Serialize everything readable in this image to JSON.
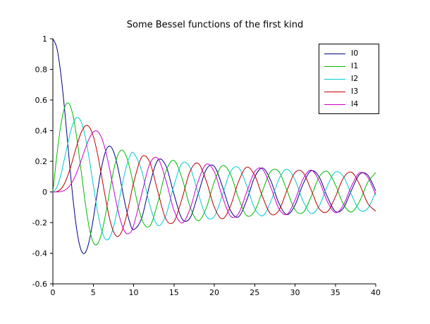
{
  "window": {
    "background": "#ffffff"
  },
  "chart_data": {
    "type": "line",
    "title": "Some Bessel functions of the first kind",
    "xlabel": "",
    "ylabel": "",
    "xlim": [
      0,
      40
    ],
    "ylim": [
      -0.6,
      1
    ],
    "grid": false,
    "legend_position": "top-right",
    "x_tick_labels": [
      "0",
      "5",
      "10",
      "15",
      "20",
      "25",
      "30",
      "35",
      "40"
    ],
    "x_ticks": [
      0,
      5,
      10,
      15,
      20,
      25,
      30,
      35,
      40
    ],
    "y_tick_labels": [
      "-0.6",
      "-0.4",
      "-0.2",
      "0",
      "0.2",
      "0.4",
      "0.6",
      "0.8",
      "1"
    ],
    "y_ticks": [
      -0.6,
      -0.4,
      -0.2,
      0,
      0.2,
      0.4,
      0.6,
      0.8,
      1
    ],
    "x": [
      0,
      0.5,
      1,
      1.5,
      2,
      2.5,
      3,
      3.5,
      4,
      4.5,
      5,
      5.5,
      6,
      6.5,
      7,
      7.5,
      8,
      8.5,
      9,
      9.5,
      10,
      11,
      12,
      13,
      14,
      15,
      16,
      17,
      18,
      19,
      20,
      21,
      22,
      23,
      24,
      25,
      26,
      27,
      28,
      29,
      30,
      31,
      32,
      33,
      34,
      35,
      36,
      37,
      38,
      39,
      40
    ],
    "series": [
      {
        "name": "I0",
        "color": "#000080",
        "values": [
          1.0,
          0.9385,
          0.7652,
          0.5118,
          0.2239,
          -0.0484,
          -0.2601,
          -0.3801,
          -0.3971,
          -0.3205,
          -0.1776,
          -0.0068,
          0.1506,
          0.2601,
          0.3001,
          0.2663,
          0.1717,
          0.0419,
          -0.0903,
          -0.1939,
          -0.2459,
          -0.1712,
          0.0477,
          0.2069,
          0.1711,
          -0.0142,
          -0.1749,
          -0.1699,
          -0.0134,
          0.1466,
          0.167,
          0.0366,
          -0.1207,
          -0.1624,
          -0.0562,
          0.0963,
          0.156,
          0.0727,
          -0.0732,
          -0.1478,
          -0.0864,
          0.0516,
          0.1382,
          0.097,
          -0.0309,
          -0.127,
          -0.1053,
          0.0113,
          0.1145,
          0.1112,
          0.007
        ]
      },
      {
        "name": "I1",
        "color": "#00BB00",
        "values": [
          0,
          0.2423,
          0.4401,
          0.5579,
          0.5767,
          0.4971,
          0.3391,
          0.1374,
          -0.066,
          -0.2311,
          -0.3276,
          -0.3414,
          -0.2767,
          -0.1538,
          -0.0047,
          0.1352,
          0.2346,
          0.2731,
          0.2453,
          0.1613,
          0.0435,
          -0.1768,
          -0.2234,
          -0.0703,
          0.1334,
          0.2051,
          0.0904,
          -0.0977,
          -0.188,
          -0.1057,
          0.0668,
          0.1717,
          0.1172,
          -0.0395,
          -0.154,
          -0.1254,
          0.0105,
          0.1346,
          0.1325,
          0.0108,
          -0.1166,
          -0.1343,
          -0.0299,
          0.0983,
          0.1336,
          0.0468,
          -0.0801,
          -0.1308,
          -0.0613,
          0.0619,
          0.1259
        ]
      },
      {
        "name": "I2",
        "color": "#00CCCC",
        "values": [
          0,
          0.0306,
          0.1149,
          0.2321,
          0.3528,
          0.4461,
          0.4861,
          0.4586,
          0.3641,
          0.2178,
          0.0466,
          -0.1174,
          -0.2429,
          -0.3074,
          -0.3014,
          -0.2302,
          -0.113,
          0.0223,
          0.1448,
          0.2279,
          0.2546,
          0.139,
          -0.0849,
          -0.2177,
          -0.152,
          0.0416,
          0.1862,
          0.1584,
          -0.0075,
          -0.1577,
          -0.1603,
          -0.0202,
          0.1314,
          0.159,
          0.0434,
          -0.1063,
          -0.1552,
          -0.0627,
          0.0827,
          0.1485,
          0.0786,
          -0.0603,
          -0.1401,
          -0.091,
          0.0388,
          0.1297,
          0.1008,
          -0.0184,
          -0.1177,
          -0.108,
          -0.0007
        ]
      },
      {
        "name": "I3",
        "color": "#BB0000",
        "values": [
          0,
          0.0026,
          0.0196,
          0.061,
          0.1289,
          0.2166,
          0.3091,
          0.3868,
          0.4302,
          0.4247,
          0.3648,
          0.2561,
          0.1148,
          -0.0353,
          -0.1676,
          -0.258,
          -0.2911,
          -0.2626,
          -0.1809,
          -0.0653,
          0.0584,
          0.2273,
          0.1951,
          0.0033,
          -0.1768,
          -0.194,
          -0.0438,
          0.135,
          0.1863,
          0.0725,
          -0.0989,
          -0.1755,
          -0.0933,
          0.0672,
          0.1612,
          0.1084,
          -0.0344,
          -0.1439,
          -0.1207,
          0.0097,
          0.1271,
          0.1265,
          0.0124,
          -0.1093,
          -0.129,
          -0.032,
          0.0913,
          0.1288,
          0.0489,
          -0.073,
          -0.126
        ]
      },
      {
        "name": "I4",
        "color": "#CC00CC",
        "values": [
          0,
          0.0002,
          0.0025,
          0.0118,
          0.034,
          0.0738,
          0.132,
          0.2044,
          0.2811,
          0.3484,
          0.3912,
          0.3967,
          0.3576,
          0.2748,
          0.1578,
          0.0238,
          -0.1054,
          -0.2077,
          -0.2655,
          -0.2691,
          -0.2196,
          -0.015,
          0.1825,
          0.2193,
          0.0762,
          -0.1192,
          -0.2026,
          -0.1107,
          0.0696,
          0.1806,
          0.1307,
          -0.0299,
          -0.1568,
          -0.1415,
          -0.0031,
          0.1323,
          0.1473,
          0.0307,
          -0.1086,
          -0.1465,
          -0.0532,
          0.0848,
          0.1424,
          0.0711,
          -0.0616,
          -0.1352,
          -0.0856,
          0.0393,
          0.1254,
          0.0968,
          -0.0182
        ]
      }
    ]
  }
}
